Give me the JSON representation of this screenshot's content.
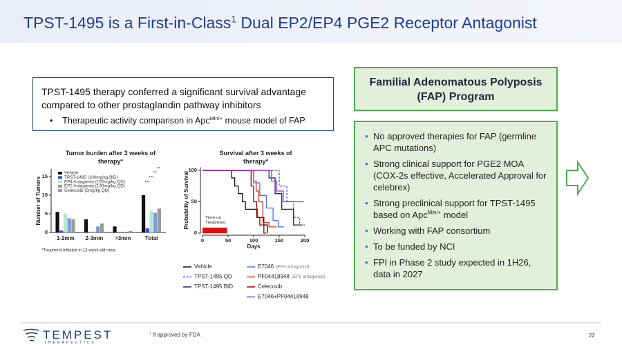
{
  "header": {
    "title": {
      "before": "TPST-1495 is a First-in-Class",
      "sup": "1",
      "after": " Dual EP2/EP4 PGE2 Receptor Antagonist"
    }
  },
  "summary": {
    "statement": "TPST-1495 therapy conferred a significant survival advantage compared to other prostaglandin pathway inhibitors",
    "bullet": {
      "before": "Therapeutic activity comparison in Apc",
      "sup": "Min/+",
      "after": " mouse model of FAP"
    }
  },
  "chart_data": [
    {
      "type": "bar",
      "title": "Tumor burden after 3 weeks of therapy*",
      "y_label": "Number of Tumors",
      "categories": [
        "1-2mm",
        "2-3mm",
        ">3mm",
        "Total"
      ],
      "series": [
        {
          "name": "Vehicle",
          "color": "#111111",
          "values": [
            5.5,
            3.5,
            1.6,
            10
          ]
        },
        {
          "name": "TPST-1495 (100mg/kg BID)",
          "color": "#3b4fd0",
          "values": [
            0.5,
            0.1,
            0,
            1.1
          ]
        },
        {
          "name": "EP4 Antagonist (150mg/kg QD)",
          "color": "#b6e6cf",
          "values": [
            5.1,
            0.3,
            0,
            5.8
          ]
        },
        {
          "name": "EP2 Antagonist (100mg/kg QD)",
          "color": "#7f9ad8",
          "values": [
            3.8,
            1.6,
            0,
            5.3
          ]
        },
        {
          "name": "Celecoxib (5mg/kg QD)",
          "color": "#9a9a9a",
          "values": [
            3.5,
            2.4,
            0.4,
            6.4
          ]
        }
      ],
      "ylim": [
        0,
        17
      ],
      "yticks": [
        0,
        5,
        10,
        15
      ],
      "annotations": [
        "**",
        "**",
        "***",
        "***"
      ],
      "footnote": "*Treatment initiated in 13-week-old mice."
    },
    {
      "type": "step",
      "title": "Survival after 3 weeks of therapy*",
      "y_label": "Probability of Survival",
      "x_label": "Days",
      "xlim": [
        0,
        200
      ],
      "ylim": [
        0,
        105
      ],
      "xticks": [
        0,
        50,
        100,
        150,
        200
      ],
      "yticks": [
        0,
        50,
        100
      ],
      "treatment": {
        "label": [
          "Time on",
          "Treatment"
        ],
        "range": [
          0,
          48
        ],
        "color": "#e01010"
      },
      "series": [
        {
          "name": "Vehicle",
          "color": "#111111",
          "dashed": false,
          "x": [
            0,
            57,
            57,
            63,
            63,
            70,
            70,
            78,
            78,
            84,
            84,
            107,
            107,
            120,
            120,
            127,
            127
          ],
          "values": [
            100,
            100,
            88,
            88,
            75,
            75,
            63,
            63,
            50,
            50,
            38,
            38,
            25,
            25,
            13,
            13,
            0
          ]
        },
        {
          "name": "TPST-1495 QD",
          "color": "#3b5bdb",
          "dashed": true,
          "x": [
            0,
            150,
            150,
            165,
            165,
            178,
            178,
            190,
            190,
            200
          ],
          "values": [
            100,
            100,
            75,
            75,
            50,
            50,
            25,
            25,
            13,
            13
          ]
        },
        {
          "name": "TPST-1495 BID",
          "color": "#1a237e",
          "dashed": false,
          "x": [
            0,
            130,
            130,
            142,
            142,
            155,
            155,
            178,
            178,
            195
          ],
          "values": [
            100,
            100,
            88,
            88,
            63,
            63,
            38,
            38,
            13,
            13
          ]
        },
        {
          "name": "E7046",
          "note": "(EP4 antagonist)",
          "color": "#4c6ef5",
          "dashed": false,
          "x": [
            0,
            100,
            100,
            112,
            112,
            125,
            125,
            138,
            138,
            148,
            148,
            160
          ],
          "values": [
            100,
            100,
            80,
            80,
            60,
            60,
            40,
            40,
            20,
            20,
            10,
            10
          ]
        },
        {
          "name": "PF04418948",
          "note": "(EP2 antagonist)",
          "color": "#e03131",
          "dashed": false,
          "x": [
            0,
            100,
            100,
            105,
            105,
            110,
            110,
            118,
            118,
            130,
            130,
            145
          ],
          "values": [
            100,
            100,
            83,
            83,
            67,
            67,
            50,
            50,
            17,
            17,
            10,
            10
          ]
        },
        {
          "name": "Celecoxib",
          "color": "#a00000",
          "dashed": false,
          "x": [
            0,
            95,
            95,
            100,
            100,
            106,
            106,
            112,
            112,
            120,
            120,
            125
          ],
          "values": [
            100,
            100,
            75,
            75,
            50,
            50,
            25,
            25,
            13,
            13,
            0,
            0
          ]
        },
        {
          "name": "E7046+PF04418948",
          "color": "#9c36b5",
          "dashed": false,
          "x": [
            0,
            135,
            135,
            145,
            145,
            158,
            158,
            198
          ],
          "values": [
            100,
            100,
            83,
            83,
            67,
            67,
            50,
            50
          ]
        }
      ]
    }
  ],
  "fap": {
    "title": "Familial Adenomatous Polyposis (FAP) Program",
    "bullets": [
      {
        "text": "No approved therapies for FAP (germline APC mutations)"
      },
      {
        "text": "Strong clinical support for PGE2 MOA (COX-2s effective, Accelerated Approval for celebrex)"
      },
      {
        "before": "Strong preclinical support for TPST-1495 based on Apc",
        "sup": "Min/+",
        "after": " model"
      },
      {
        "text": "Working with FAP consortium"
      },
      {
        "text": "To be funded by NCI"
      },
      {
        "text": "FPI in Phase 2 study expected in 1H26, data in 2027"
      }
    ]
  },
  "footer": {
    "logo": "TEMPEST",
    "logo_sub": "THERAPEUTICS",
    "footnote": {
      "sup": "1",
      "text": "If approved by FDA"
    },
    "page": "22"
  }
}
